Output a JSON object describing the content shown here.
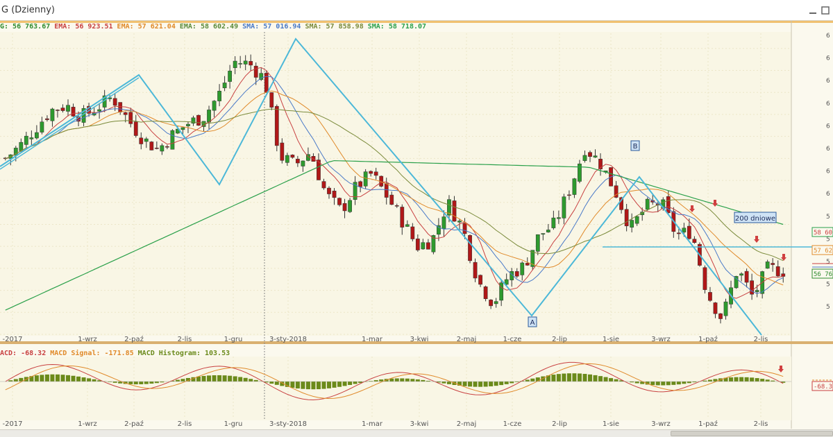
{
  "window": {
    "title": "G (Dzienny)"
  },
  "legend": {
    "items": [
      {
        "label": "G:",
        "value": "56 763.67",
        "color": "#2e8b2e"
      },
      {
        "label": "EMA:",
        "value": "56 923.51",
        "color": "#c84040"
      },
      {
        "label": "EMA:",
        "value": "57 621.04",
        "color": "#e08a2a"
      },
      {
        "label": "EMA:",
        "value": "58 602.49",
        "color": "#5a8a3a"
      },
      {
        "label": "SMA:",
        "value": "57 016.94",
        "color": "#4a7ac8"
      },
      {
        "label": "SMA:",
        "value": "57 858.98",
        "color": "#7a8a3a"
      },
      {
        "label": "SMA:",
        "value": "58 718.07",
        "color": "#2aa04a"
      }
    ]
  },
  "macd_legend": {
    "items": [
      {
        "label": "ACD:",
        "value": "-68.32",
        "color": "#c84040"
      },
      {
        "label": "MACD Signal:",
        "value": "-171.85",
        "color": "#e08a2a"
      },
      {
        "label": "MACD Histogram:",
        "value": "103.53",
        "color": "#6b8a1a"
      }
    ]
  },
  "x_labels": [
    "-2017",
    "1-wrz",
    "2-paź",
    "2-lis",
    "1-gru",
    "3-sty-2018",
    "1-mar",
    "3-kwi",
    "2-maj",
    "1-cze",
    "2-lip",
    "1-sie",
    "3-wrz",
    "1-paź",
    "2-lis"
  ],
  "y_labels_right": [
    "6",
    "6",
    "6",
    "6",
    "6",
    "6",
    "6",
    "6",
    "5",
    "5",
    "5",
    "5",
    "5"
  ],
  "price_tags": [
    {
      "text": "58 60",
      "color": "#c84040",
      "border": "#2aa04a"
    },
    {
      "text": "57 62",
      "color": "#e08a2a",
      "border": "#e08a2a"
    },
    {
      "text": "56 76",
      "color": "#2e8b2e",
      "border": "#2e8b2e"
    }
  ],
  "macd_tag": {
    "text": "-68.3",
    "color": "#c84040"
  },
  "annotations": {
    "point_a": "A",
    "point_b": "B",
    "ma_label": "200 dniowe"
  },
  "colors": {
    "pattern": "#4cb8d8",
    "bull": "#2e9a2e",
    "bear": "#b01818",
    "sma200": "#2aa04a"
  },
  "chart_data": {
    "type": "line",
    "title": "",
    "x_tick_labels": [
      "-2017",
      "1-wrz",
      "2-paź",
      "2-lis",
      "1-gru",
      "3-sty-2018",
      "1-mar",
      "3-kwi",
      "2-maj",
      "1-cze",
      "2-lip",
      "1-sie",
      "3-wrz",
      "1-paź",
      "2-lis"
    ],
    "series": [
      {
        "name": "G",
        "type": "candlestick",
        "approx_close_path": [
          62000,
          62600,
          63400,
          64200,
          64400,
          63900,
          64300,
          64800,
          63800,
          62900,
          62400,
          63100,
          63600,
          63900,
          64900,
          66400,
          66300,
          65600,
          62100,
          61700,
          62300,
          60400,
          59600,
          60700,
          61300,
          60300,
          59200,
          58000,
          58300,
          60000,
          58800,
          56400,
          55400,
          56700,
          57100,
          58500,
          59000,
          60600,
          62500,
          61800,
          60500,
          58800,
          59800,
          60000,
          58500,
          58700,
          55900,
          54700,
          57000,
          55700,
          57000,
          56900
        ]
      },
      {
        "name": "EMA",
        "value": 56923.51
      },
      {
        "name": "EMA",
        "value": 57621.04
      },
      {
        "name": "EMA",
        "value": 58602.49
      },
      {
        "name": "SMA",
        "value": 57016.94
      },
      {
        "name": "SMA",
        "value": 57858.98
      },
      {
        "name": "SMA",
        "value": 58718.07
      }
    ],
    "macd": {
      "macd": -68.32,
      "signal": -171.85,
      "histogram": 103.53
    },
    "annotations": [
      "A",
      "B",
      "200 dniowe"
    ],
    "grid": true
  }
}
